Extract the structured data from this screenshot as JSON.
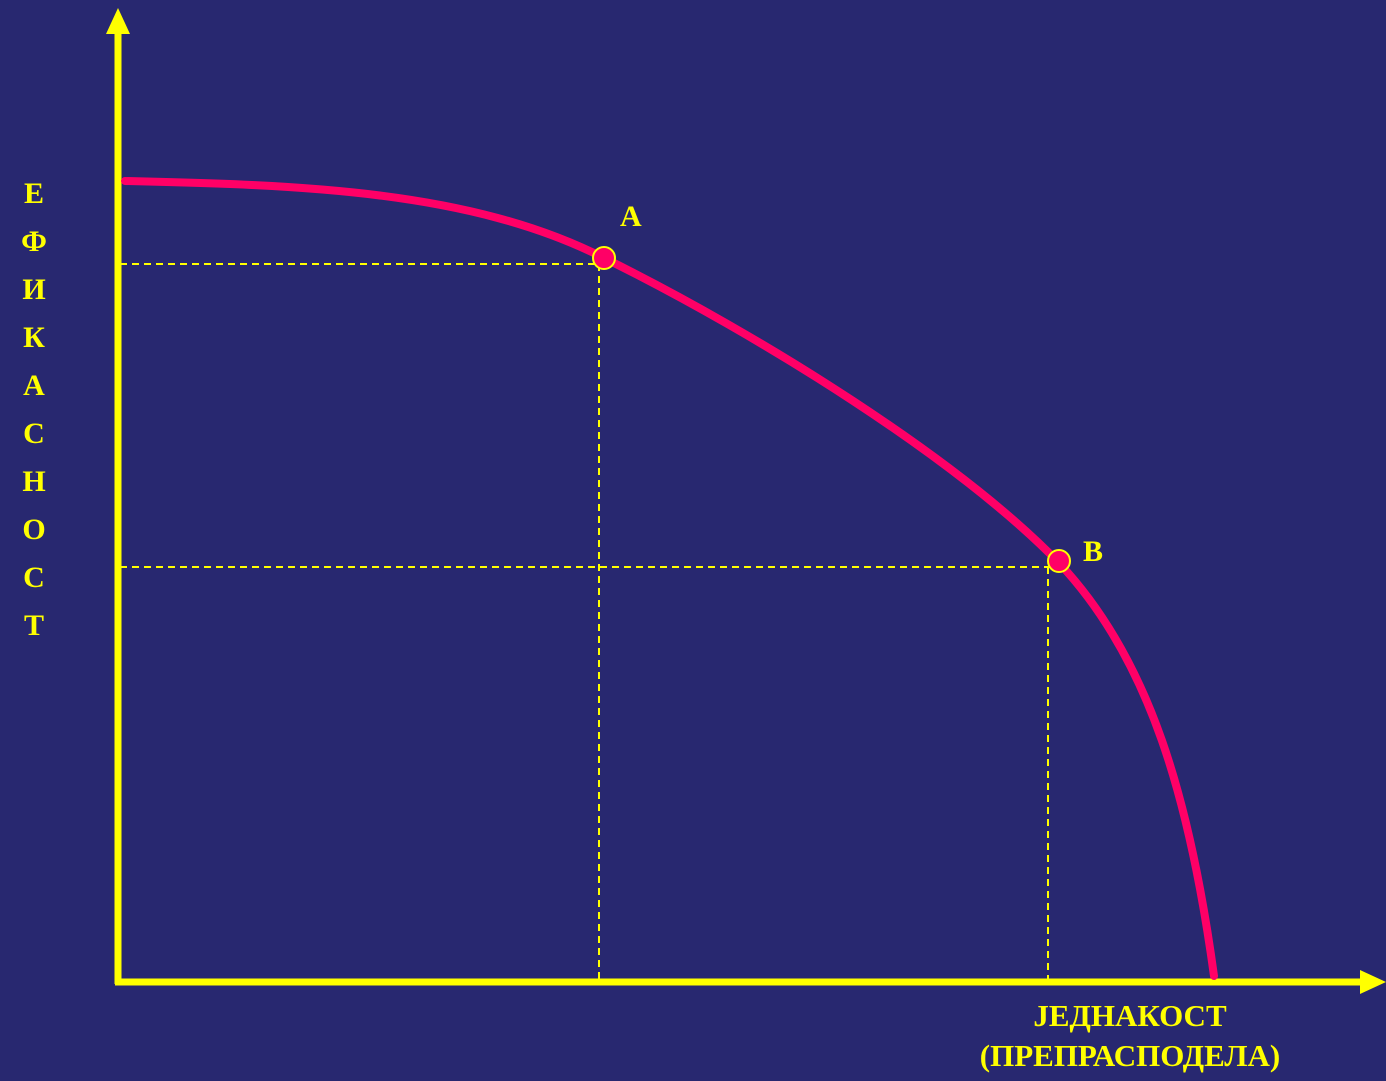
{
  "diagram": {
    "y_axis_letters": [
      "Е",
      "Ф",
      "И",
      "К",
      "А",
      "С",
      "Н",
      "О",
      "С",
      "Т"
    ],
    "x_axis_label_line1": "ЈЕДНАКОСТ",
    "x_axis_label_line2": "(ПРЕПРАСПОДЕЛА)",
    "points": [
      {
        "label": "A"
      },
      {
        "label": "B"
      }
    ],
    "colors": {
      "background": "#282870",
      "axes": "#FFFF00",
      "curve": "#FF0066",
      "guides": "#FFFF00",
      "points": "#FF0066",
      "text": "#FFFF00"
    }
  }
}
